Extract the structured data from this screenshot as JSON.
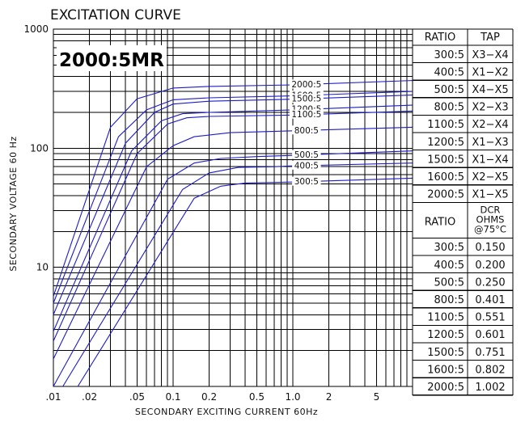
{
  "chart_data": {
    "type": "line",
    "title": "EXCITATION CURVE",
    "model_label": "2000:5MR",
    "xlabel": "SECONDARY EXCITING CURRENT 60Hz",
    "ylabel": "SECONDARY VOLTAGE 60 Hz",
    "x_scale": "log",
    "y_scale": "log",
    "xlim": [
      0.01,
      10
    ],
    "ylim": [
      1,
      1000
    ],
    "grid": true,
    "x_tick_labels": [
      {
        "value": 0.01,
        "label": ".01"
      },
      {
        "value": 0.02,
        "label": ".02"
      },
      {
        "value": 0.05,
        "label": ".05"
      },
      {
        "value": 0.1,
        "label": "0.1"
      },
      {
        "value": 0.2,
        "label": "0.2"
      },
      {
        "value": 0.5,
        "label": "0.5"
      },
      {
        "value": 1,
        "label": "1.0"
      },
      {
        "value": 2,
        "label": "2"
      },
      {
        "value": 5,
        "label": "5"
      }
    ],
    "y_tick_labels": [
      {
        "value": 1000,
        "label": "1000"
      },
      {
        "value": 100,
        "label": "100"
      },
      {
        "value": 10,
        "label": "10"
      }
    ],
    "series": [
      {
        "name": "2000:5",
        "label_at": 1.3,
        "points": [
          [
            0.01,
            5.7
          ],
          [
            0.03,
            150
          ],
          [
            0.05,
            260
          ],
          [
            0.1,
            320
          ],
          [
            0.2,
            330
          ],
          [
            1,
            340
          ],
          [
            10,
            370
          ]
        ]
      },
      {
        "name": "1600:5",
        "label_at": 1.3,
        "points": [
          [
            0.01,
            5.0
          ],
          [
            0.035,
            125
          ],
          [
            0.06,
            210
          ],
          [
            0.1,
            255
          ],
          [
            0.2,
            265
          ],
          [
            1,
            275
          ],
          [
            10,
            300
          ]
        ]
      },
      {
        "name": "1500:5",
        "label_at": 1.3,
        "points": [
          [
            0.01,
            4.0
          ],
          [
            0.04,
            110
          ],
          [
            0.07,
            200
          ],
          [
            0.1,
            235
          ],
          [
            0.2,
            248
          ],
          [
            1,
            258
          ],
          [
            10,
            280
          ]
        ]
      },
      {
        "name": "1200:5",
        "label_at": 1.3,
        "points": [
          [
            0.01,
            2.9
          ],
          [
            0.045,
            95
          ],
          [
            0.08,
            170
          ],
          [
            0.12,
            195
          ],
          [
            0.2,
            200
          ],
          [
            1,
            210
          ],
          [
            10,
            230
          ]
        ]
      },
      {
        "name": "1100:5",
        "label_at": 1.3,
        "points": [
          [
            0.01,
            2.4
          ],
          [
            0.05,
            90
          ],
          [
            0.09,
            160
          ],
          [
            0.13,
            180
          ],
          [
            0.2,
            185
          ],
          [
            1,
            190
          ],
          [
            10,
            205
          ]
        ]
      },
      {
        "name": "800:5",
        "label_at": 1.3,
        "points": [
          [
            0.01,
            1.7
          ],
          [
            0.06,
            70
          ],
          [
            0.1,
            105
          ],
          [
            0.15,
            125
          ],
          [
            0.3,
            135
          ],
          [
            1,
            140
          ],
          [
            10,
            150
          ]
        ]
      },
      {
        "name": "500:5",
        "label_at": 1.3,
        "points": [
          [
            0.01,
            1.0
          ],
          [
            0.09,
            55
          ],
          [
            0.15,
            75
          ],
          [
            0.25,
            82
          ],
          [
            0.5,
            85
          ],
          [
            1,
            87
          ],
          [
            10,
            95
          ]
        ]
      },
      {
        "name": "400:5",
        "label_at": 1.3,
        "points": [
          [
            0.012,
            1.0
          ],
          [
            0.12,
            45
          ],
          [
            0.2,
            62
          ],
          [
            0.35,
            69
          ],
          [
            0.7,
            70
          ],
          [
            1,
            71
          ],
          [
            10,
            75
          ]
        ]
      },
      {
        "name": "300:5",
        "label_at": 1.3,
        "points": [
          [
            0.016,
            1.0
          ],
          [
            0.15,
            38
          ],
          [
            0.25,
            48
          ],
          [
            0.4,
            51
          ],
          [
            1,
            52
          ],
          [
            10,
            56
          ]
        ]
      }
    ]
  },
  "tap_table": {
    "headers": [
      "RATIO",
      "TAP"
    ],
    "rows": [
      [
        "300:5",
        "X3−X4"
      ],
      [
        "400:5",
        "X1−X2"
      ],
      [
        "500:5",
        "X4−X5"
      ],
      [
        "800:5",
        "X2−X3"
      ],
      [
        "1100:5",
        "X2−X4"
      ],
      [
        "1200:5",
        "X1−X3"
      ],
      [
        "1500:5",
        "X1−X4"
      ],
      [
        "1600:5",
        "X2−X5"
      ],
      [
        "2000:5",
        "X1−X5"
      ]
    ]
  },
  "dcr_table": {
    "header_ratio": "RATIO",
    "header_dcr": [
      "DCR",
      "OHMS",
      "@75°C"
    ],
    "rows": [
      [
        "300:5",
        "0.150"
      ],
      [
        "400:5",
        "0.200"
      ],
      [
        "500:5",
        "0.250"
      ],
      [
        "800:5",
        "0.401"
      ],
      [
        "1100:5",
        "0.551"
      ],
      [
        "1200:5",
        "0.601"
      ],
      [
        "1500:5",
        "0.751"
      ],
      [
        "1600:5",
        "0.802"
      ],
      [
        "2000:5",
        "1.002"
      ]
    ]
  }
}
